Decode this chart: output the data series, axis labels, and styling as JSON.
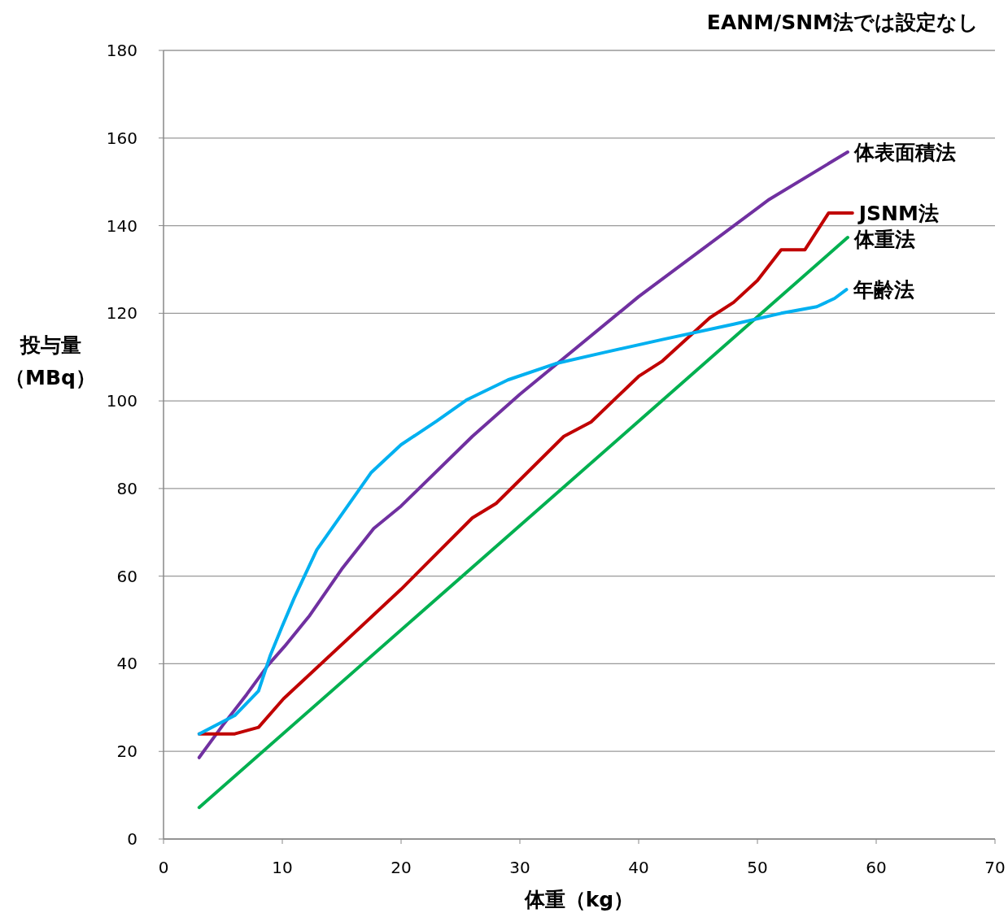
{
  "chart_data": {
    "type": "line",
    "xlabel": "体重（kg）",
    "ylabel": "投与量（MBq）",
    "annotations": [
      "EANM/SNM法では設定なし"
    ],
    "xlim": [
      0,
      70
    ],
    "xticks": [
      0,
      10,
      20,
      30,
      40,
      50,
      60,
      70
    ],
    "ylim": [
      0,
      180
    ],
    "yticks": [
      0,
      20,
      40,
      60,
      80,
      100,
      120,
      140,
      160,
      180
    ],
    "grid": "y",
    "legend": false,
    "marker": "none",
    "line_style": "solid",
    "series": [
      {
        "name": "体表面積法",
        "color": "#7030a0",
        "x": [
          3,
          5,
          7,
          8.8,
          10.2,
          12.3,
          15,
          17.7,
          20,
          26,
          30,
          40,
          51,
          57.6
        ],
        "values": [
          18.6,
          26,
          33,
          39.7,
          44,
          51,
          61.6,
          70.9,
          76,
          91.9,
          101.5,
          123.8,
          146,
          156.8
        ]
      },
      {
        "name": "JSNM法",
        "color": "#c00000",
        "x": [
          3,
          6,
          8,
          10.1,
          20,
          26,
          28,
          33.7,
          36,
          40,
          42,
          46,
          48,
          50,
          52,
          54,
          56,
          58
        ],
        "values": [
          24,
          24,
          25.5,
          32,
          57,
          73.3,
          76.6,
          91.9,
          95.2,
          105.6,
          109.1,
          119,
          122.5,
          127.5,
          134.5,
          134.5,
          142.9,
          142.9
        ]
      },
      {
        "name": "体重法",
        "color": "#00b050",
        "x": [
          3,
          57.6
        ],
        "values": [
          7.2,
          137.3
        ]
      },
      {
        "name": "年齢法",
        "color": "#00b0f0",
        "x": [
          3,
          6,
          8,
          9,
          10,
          11,
          12.9,
          15.5,
          17.5,
          20,
          23,
          25.5,
          29,
          33,
          37,
          42,
          48,
          52,
          55,
          56.5,
          57.5
        ],
        "values": [
          24,
          28.2,
          33.8,
          42,
          48.6,
          55,
          66,
          76,
          83.7,
          90,
          95.4,
          100.2,
          104.8,
          108.5,
          111,
          114,
          117.5,
          120,
          121.5,
          123.4,
          125.4
        ]
      }
    ]
  }
}
